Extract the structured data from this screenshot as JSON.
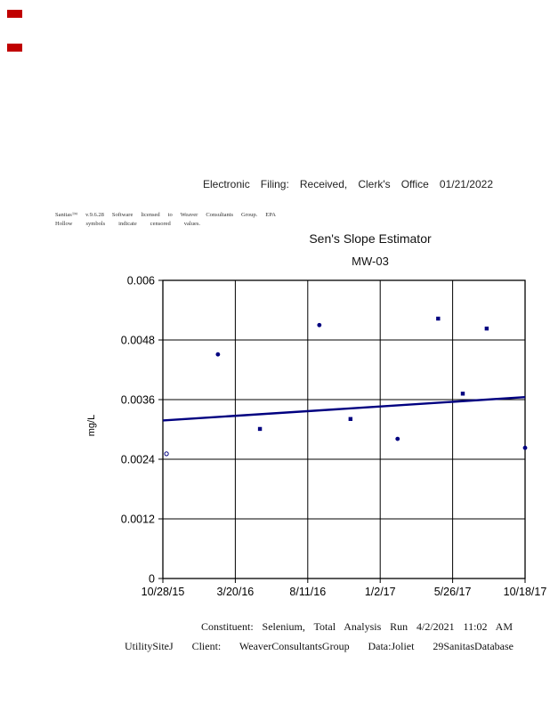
{
  "page": {
    "header_line": "Electronic Filing: Received, Clerk's Office 01/21/2022",
    "stamp_color": "#c00000"
  },
  "footnote": {
    "line1": "Sanitas™ v.9.6.28 Software licensed to Weaver Consultants Group. EPA",
    "line2": "Hollow symbols indicate censored values."
  },
  "caption": {
    "line1": "Constituent: Selenium, Total Analysis Run 4/2/2021 11:02 AM",
    "line2": "UtilitySiteJ Client: WeaverConsultantsGroup Data:Joliet 29SanitasDatabase"
  },
  "chart_data": {
    "type": "scatter",
    "title": "Sen's Slope Estimator",
    "subtitle": "MW-03",
    "xlabel": "",
    "ylabel": "mg/L",
    "ylim": [
      0,
      0.006
    ],
    "yticks": [
      0,
      0.0012,
      0.0024,
      0.0036,
      0.0048,
      0.006
    ],
    "ytick_labels": [
      "0",
      "0.0012",
      "0.0024",
      "0.0036",
      "0.0048",
      "0.006"
    ],
    "xtick_labels": [
      "10/28/15",
      "3/20/16",
      "8/11/16",
      "1/2/17",
      "5/26/17",
      "10/18/17"
    ],
    "grid": true,
    "legend": "none",
    "frame_color": "#000000",
    "marker_color": "#000080",
    "trend_color": "#000080",
    "trend": {
      "name": "sen-slope-line",
      "x": [
        0,
        5
      ],
      "y": [
        0.00318,
        0.00365
      ]
    },
    "points": [
      {
        "x": 0.05,
        "y": 0.00251,
        "marker": "circle",
        "censored": true,
        "approx_date": "11/2/15"
      },
      {
        "x": 0.76,
        "y": 0.00451,
        "marker": "circle",
        "censored": false,
        "approx_date": "2/15/16"
      },
      {
        "x": 1.34,
        "y": 0.00301,
        "marker": "square",
        "censored": false,
        "approx_date": "5/8/16"
      },
      {
        "x": 2.16,
        "y": 0.0051,
        "marker": "circle",
        "censored": false,
        "approx_date": "9/1/16"
      },
      {
        "x": 2.59,
        "y": 0.00321,
        "marker": "square",
        "censored": false,
        "approx_date": "11/5/16"
      },
      {
        "x": 3.24,
        "y": 0.00281,
        "marker": "circle",
        "censored": false,
        "approx_date": "2/8/17"
      },
      {
        "x": 3.8,
        "y": 0.00523,
        "marker": "square",
        "censored": false,
        "approx_date": "4/29/17"
      },
      {
        "x": 4.14,
        "y": 0.00372,
        "marker": "square",
        "censored": false,
        "approx_date": "6/17/17"
      },
      {
        "x": 4.47,
        "y": 0.00503,
        "marker": "square",
        "censored": false,
        "approx_date": "8/2/17"
      },
      {
        "x": 5.0,
        "y": 0.00263,
        "marker": "circle",
        "censored": false,
        "approx_date": "10/18/17"
      }
    ]
  }
}
